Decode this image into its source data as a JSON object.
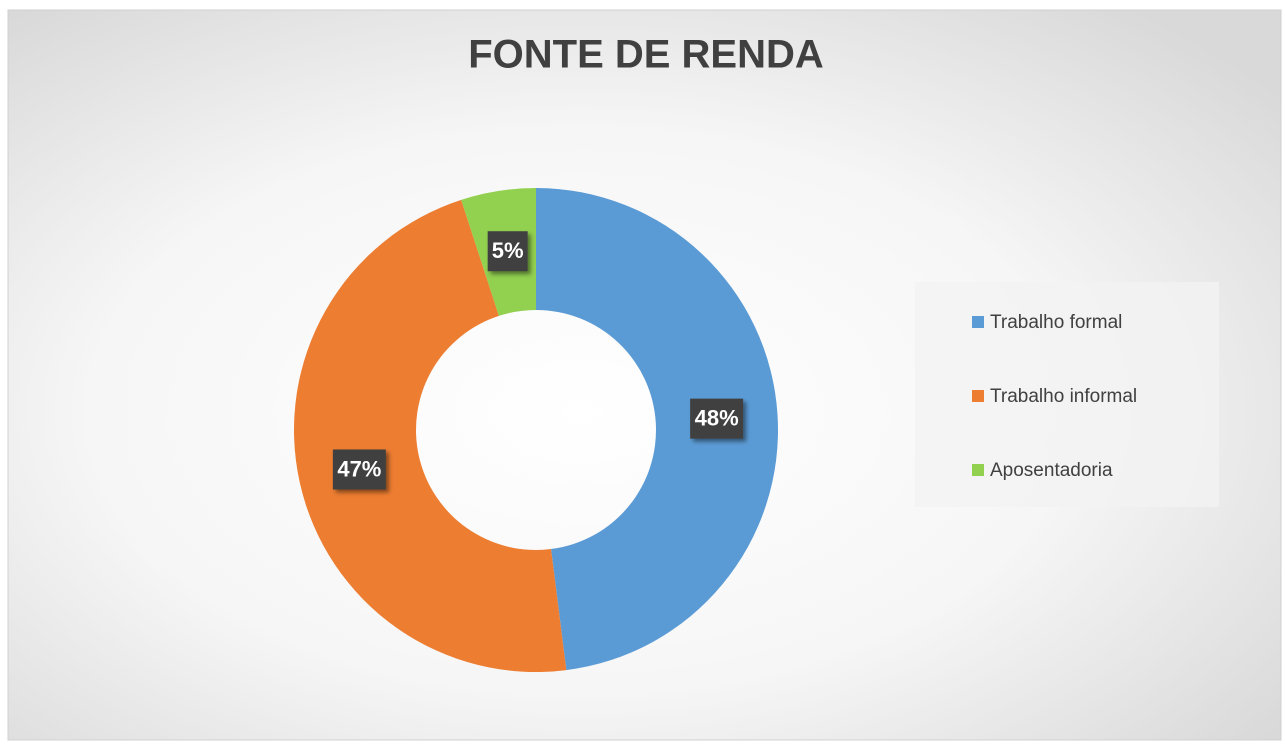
{
  "chart_data": {
    "type": "donut",
    "title": "FONTE DE RENDA",
    "categories": [
      "Trabalho formal",
      "Trabalho informal",
      "Aposentadoria"
    ],
    "values": [
      48,
      47,
      5
    ],
    "value_labels": [
      "48%",
      "47%",
      "5%"
    ],
    "colors": [
      "#5b9bd5",
      "#ed7d31",
      "#92d050"
    ],
    "legend": "right"
  }
}
